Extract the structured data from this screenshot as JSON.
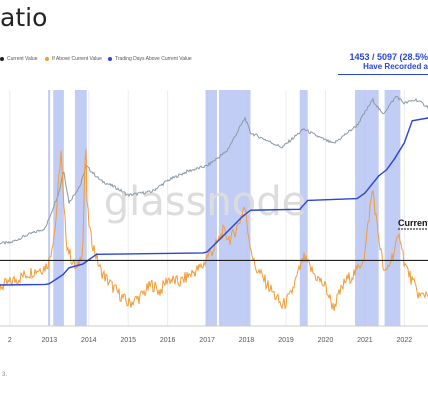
{
  "header": {
    "title_fragment": "atio"
  },
  "legend": {
    "items": [
      {
        "label": "Current Value",
        "color": "#222222"
      },
      {
        "label": "If Above Current Value",
        "color": "#f39c37"
      },
      {
        "label": "Trading Days Above Current Value",
        "color": "#2a45d8"
      }
    ]
  },
  "stat": {
    "line1": "1453 / 5097 (28.5%",
    "line2": "Have Recorded a"
  },
  "annotation": {
    "current_label": "Current"
  },
  "watermark": "glassnode",
  "footnote": "3.",
  "colors": {
    "price": "#8a9aa4",
    "ratio": "#f39c37",
    "counter": "#2a45d8",
    "current": "#222222",
    "shade": "#aebcf2",
    "grid": "#ececec"
  },
  "chart_data": {
    "type": "line",
    "x_range": [
      2011.75,
      2022.6
    ],
    "x_ticks": [
      "2",
      "2013",
      "2014",
      "2015",
      "2016",
      "2017",
      "2018",
      "2019",
      "2020",
      "2021",
      "2022"
    ],
    "x_tick_values": [
      2012.0,
      2013.0,
      2014.0,
      2015.0,
      2016.0,
      2017.0,
      2018.0,
      2019.0,
      2020.0,
      2021.0,
      2022.0
    ],
    "current_value_level": 0.5,
    "ratio_ylim": [
      0,
      1.8
    ],
    "series": [
      {
        "name": "Current Value",
        "kind": "horizontal_line",
        "value": 0.5
      },
      {
        "name": "If Above Current Value",
        "kind": "oscillator",
        "points": [
          [
            2011.75,
            0.3
          ],
          [
            2012.0,
            0.33
          ],
          [
            2012.3,
            0.38
          ],
          [
            2012.6,
            0.42
          ],
          [
            2012.9,
            0.45
          ],
          [
            2013.0,
            0.5
          ],
          [
            2013.15,
            0.75
          ],
          [
            2013.3,
            1.35
          ],
          [
            2013.36,
            0.92
          ],
          [
            2013.45,
            0.62
          ],
          [
            2013.55,
            0.52
          ],
          [
            2013.7,
            0.42
          ],
          [
            2013.85,
            0.6
          ],
          [
            2013.92,
            1.45
          ],
          [
            2013.96,
            0.9
          ],
          [
            2014.05,
            0.68
          ],
          [
            2014.3,
            0.42
          ],
          [
            2014.6,
            0.3
          ],
          [
            2015.0,
            0.17
          ],
          [
            2015.3,
            0.22
          ],
          [
            2015.6,
            0.32
          ],
          [
            2015.8,
            0.26
          ],
          [
            2016.0,
            0.36
          ],
          [
            2016.3,
            0.33
          ],
          [
            2016.6,
            0.4
          ],
          [
            2016.9,
            0.46
          ],
          [
            2017.0,
            0.53
          ],
          [
            2017.2,
            0.6
          ],
          [
            2017.4,
            0.72
          ],
          [
            2017.6,
            0.66
          ],
          [
            2017.8,
            0.78
          ],
          [
            2017.95,
            0.92
          ],
          [
            2018.05,
            0.7
          ],
          [
            2018.2,
            0.46
          ],
          [
            2018.5,
            0.33
          ],
          [
            2018.9,
            0.15
          ],
          [
            2019.1,
            0.22
          ],
          [
            2019.45,
            0.52
          ],
          [
            2019.7,
            0.4
          ],
          [
            2020.0,
            0.3
          ],
          [
            2020.2,
            0.14
          ],
          [
            2020.5,
            0.34
          ],
          [
            2020.8,
            0.42
          ],
          [
            2021.0,
            0.55
          ],
          [
            2021.12,
            0.88
          ],
          [
            2021.2,
            1.05
          ],
          [
            2021.3,
            0.78
          ],
          [
            2021.5,
            0.38
          ],
          [
            2021.8,
            0.62
          ],
          [
            2021.9,
            0.7
          ],
          [
            2022.0,
            0.48
          ],
          [
            2022.2,
            0.34
          ],
          [
            2022.4,
            0.22
          ],
          [
            2022.6,
            0.26
          ]
        ]
      },
      {
        "name": "Trading Days Above Current Value",
        "kind": "cumulative",
        "points": [
          [
            2011.75,
            90
          ],
          [
            2012.9,
            95
          ],
          [
            2013.0,
            100
          ],
          [
            2013.35,
            175
          ],
          [
            2013.5,
            230
          ],
          [
            2013.85,
            260
          ],
          [
            2014.15,
            330
          ],
          [
            2014.2,
            340
          ],
          [
            2016.9,
            352
          ],
          [
            2017.0,
            360
          ],
          [
            2017.5,
            520
          ],
          [
            2017.9,
            650
          ],
          [
            2018.1,
            700
          ],
          [
            2019.35,
            708
          ],
          [
            2019.55,
            780
          ],
          [
            2020.8,
            795
          ],
          [
            2021.0,
            840
          ],
          [
            2021.35,
            980
          ],
          [
            2021.55,
            1030
          ],
          [
            2021.75,
            1120
          ],
          [
            2022.0,
            1250
          ],
          [
            2022.2,
            1430
          ],
          [
            2022.6,
            1453
          ]
        ]
      },
      {
        "name": "Price",
        "kind": "log_price",
        "points": [
          [
            2011.75,
            0.9
          ],
          [
            2012.0,
            0.9
          ],
          [
            2012.4,
            1.1
          ],
          [
            2012.9,
            1.3
          ],
          [
            2013.25,
            2.3
          ],
          [
            2013.36,
            2.9
          ],
          [
            2013.5,
            2.0
          ],
          [
            2013.8,
            2.5
          ],
          [
            2013.93,
            3.0
          ],
          [
            2014.3,
            2.6
          ],
          [
            2014.7,
            2.4
          ],
          [
            2015.0,
            2.2
          ],
          [
            2015.6,
            2.3
          ],
          [
            2016.0,
            2.6
          ],
          [
            2016.5,
            2.85
          ],
          [
            2017.0,
            3.0
          ],
          [
            2017.5,
            3.4
          ],
          [
            2017.96,
            4.3
          ],
          [
            2018.1,
            3.9
          ],
          [
            2018.9,
            3.5
          ],
          [
            2019.45,
            4.0
          ],
          [
            2019.8,
            3.8
          ],
          [
            2020.2,
            3.6
          ],
          [
            2020.8,
            4.1
          ],
          [
            2021.2,
            4.8
          ],
          [
            2021.45,
            4.4
          ],
          [
            2021.8,
            4.9
          ],
          [
            2022.0,
            4.7
          ],
          [
            2022.3,
            4.8
          ],
          [
            2022.6,
            4.6
          ]
        ]
      }
    ],
    "shaded_periods": [
      [
        2012.97,
        2013.02
      ],
      [
        2013.1,
        2013.37
      ],
      [
        2013.65,
        2013.95
      ],
      [
        2016.96,
        2017.25
      ],
      [
        2017.3,
        2018.1
      ],
      [
        2019.35,
        2019.55
      ],
      [
        2020.75,
        2021.35
      ],
      [
        2021.5,
        2021.9
      ]
    ]
  }
}
